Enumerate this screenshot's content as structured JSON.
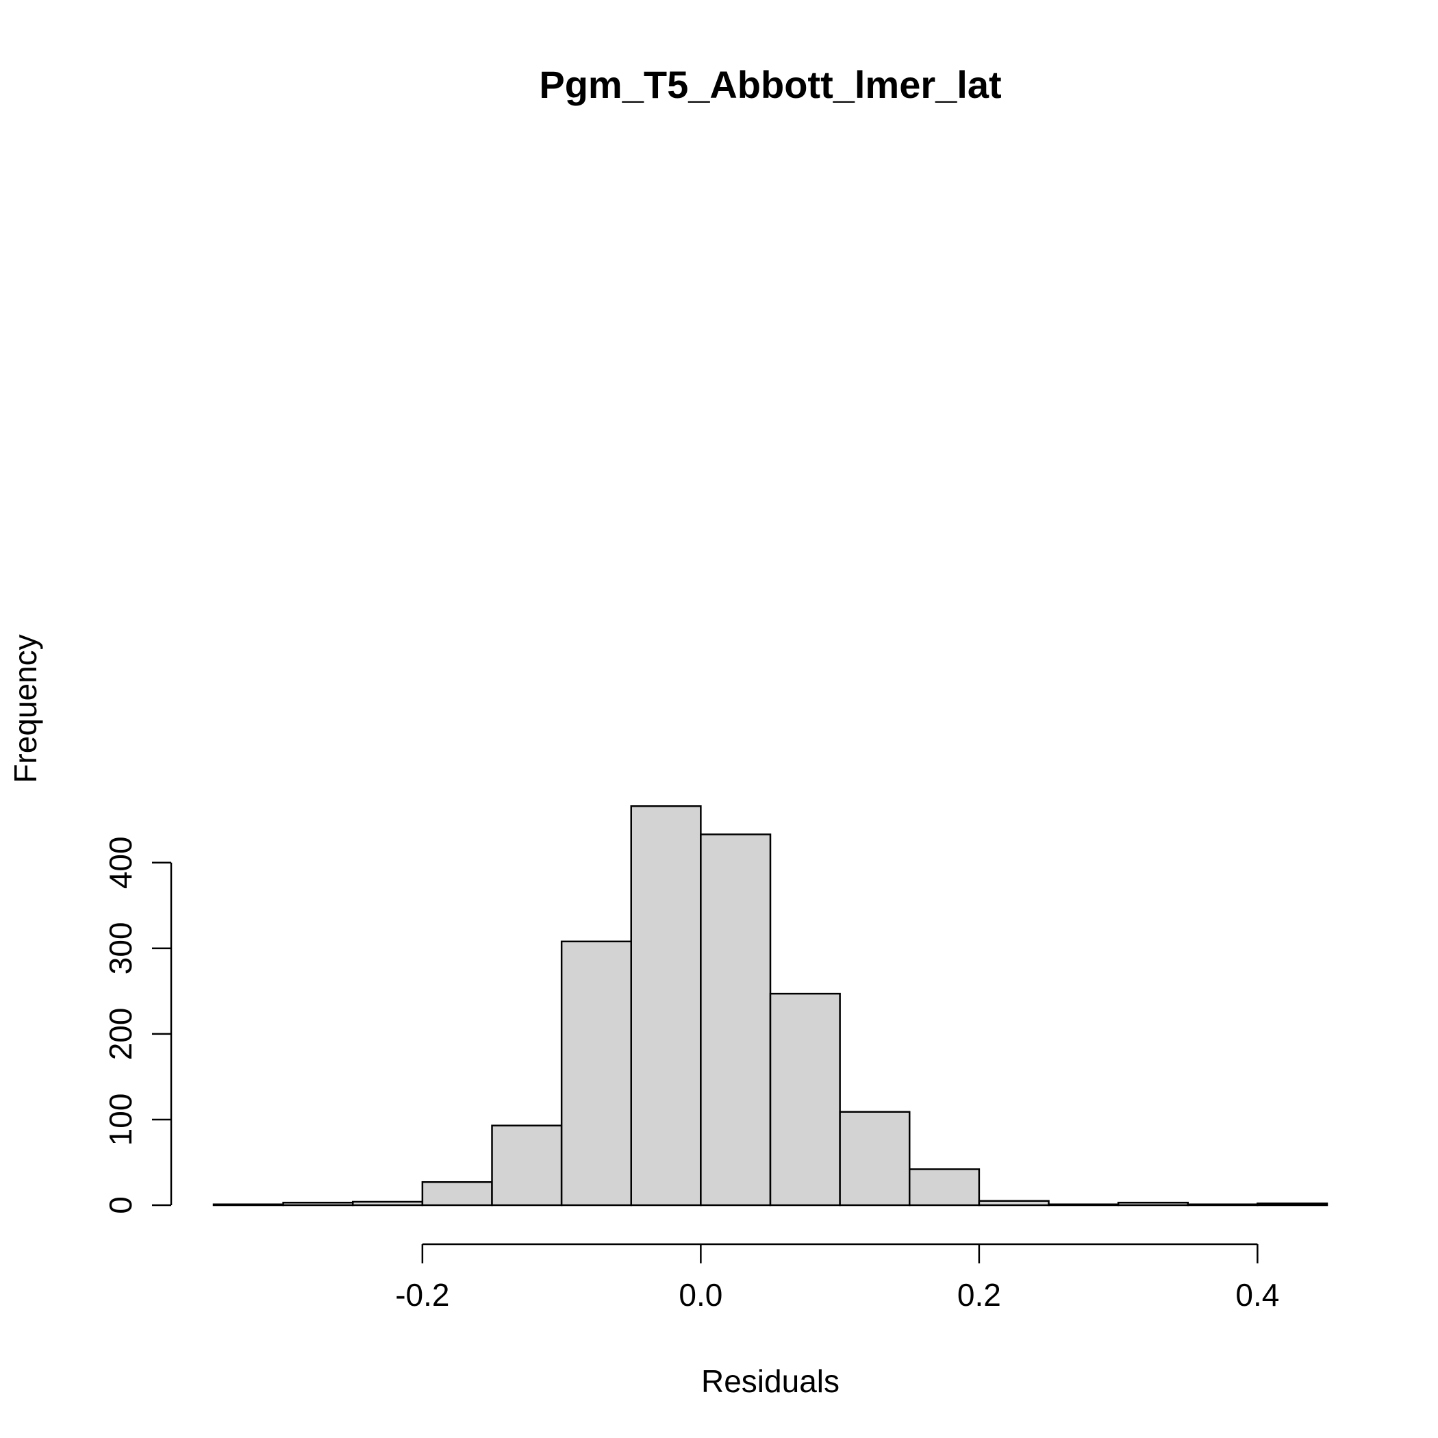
{
  "chart_data": {
    "type": "bar",
    "title": "Pgm_T5_Abbott_lmer_lat",
    "xlabel": "Residuals",
    "ylabel": "Frequency",
    "bin_edges": [
      -0.35,
      -0.3,
      -0.25,
      -0.2,
      -0.15,
      -0.1,
      -0.05,
      0.0,
      0.05,
      0.1,
      0.15,
      0.2,
      0.25,
      0.3,
      0.35,
      0.4,
      0.45
    ],
    "values": [
      1,
      3,
      4,
      27,
      93,
      308,
      466,
      433,
      247,
      109,
      42,
      5,
      1,
      3,
      1,
      2
    ],
    "xlim": [
      -0.35,
      0.45
    ],
    "ylim": [
      0,
      466
    ],
    "x_ticks": [
      -0.2,
      0.0,
      0.2,
      0.4
    ],
    "x_tick_labels": [
      "-0.2",
      "0.0",
      "0.2",
      "0.4"
    ],
    "y_ticks": [
      0,
      100,
      200,
      300,
      400
    ],
    "y_tick_labels": [
      "0",
      "100",
      "200",
      "300",
      "400"
    ],
    "grid": false,
    "legend": "none",
    "bar_fill": "#d3d3d3",
    "bar_stroke": "#000000"
  }
}
